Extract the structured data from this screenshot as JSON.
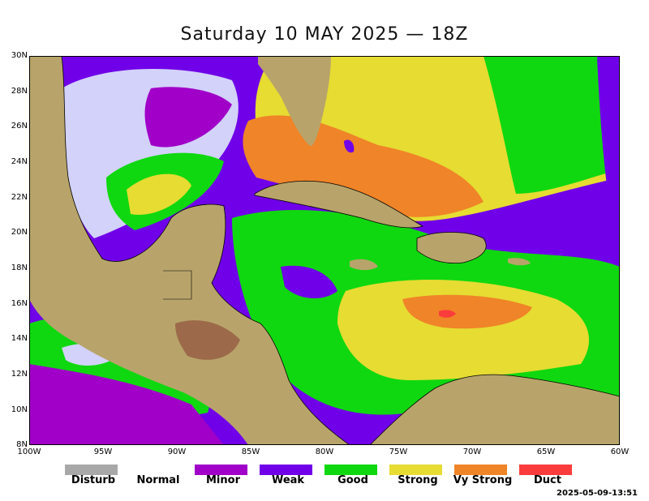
{
  "title": "Saturday 10 MAY 2025 — 18Z",
  "timestamp": "2025-05-09-13:51",
  "lat_labels": [
    "30N",
    "28N",
    "26N",
    "24N",
    "22N",
    "20N",
    "18N",
    "16N",
    "14N",
    "12N",
    "10N",
    "8N"
  ],
  "lon_labels": [
    "100W",
    "95W",
    "90W",
    "85W",
    "80W",
    "75W",
    "70W",
    "65W",
    "60W"
  ],
  "legend": [
    {
      "label": "Disturb",
      "color": "#a8a8a8"
    },
    {
      "label": "Normal",
      "color": "#ffffff"
    },
    {
      "label": "Minor",
      "color": "#a000c8"
    },
    {
      "label": "Weak",
      "color": "#7000e8"
    },
    {
      "label": "Good",
      "color": "#10d810"
    },
    {
      "label": "Strong",
      "color": "#e6dc32"
    },
    {
      "label": "Vy Strong",
      "color": "#f08428"
    },
    {
      "label": "Duct",
      "color": "#fa3c3c"
    }
  ],
  "colors": {
    "land": "#b8a46a",
    "normal_sea": "#d2d2fa",
    "minor": "#a000c8",
    "weak": "#7000e8",
    "good": "#10d810",
    "strong": "#e6dc32",
    "vy_strong": "#f08428",
    "duct": "#fa3c3c"
  }
}
